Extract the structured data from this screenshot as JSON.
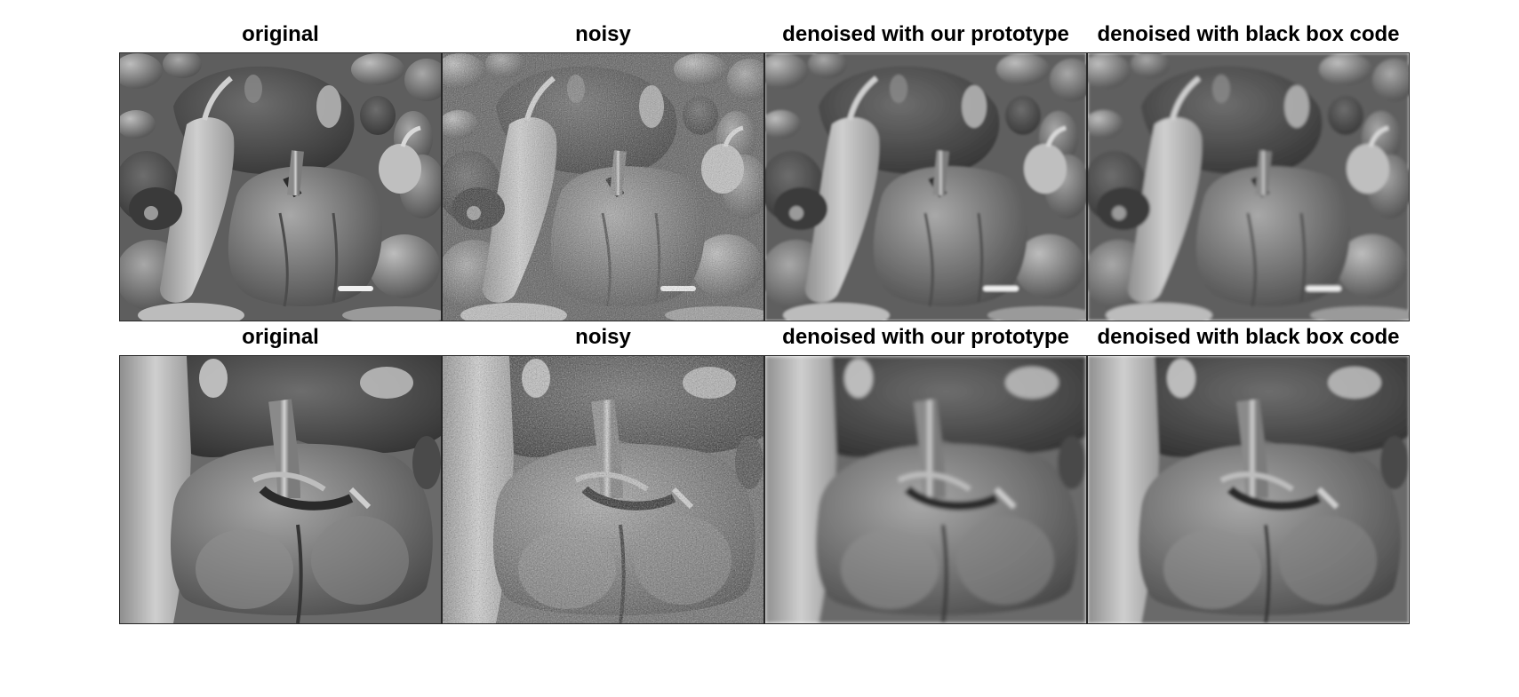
{
  "figure": {
    "rows": [
      {
        "panels": [
          {
            "title": "original",
            "variant": "original"
          },
          {
            "title": "noisy",
            "variant": "noisy"
          },
          {
            "title": "denoised with our prototype",
            "variant": "prototype"
          },
          {
            "title": "denoised with black box code",
            "variant": "blackbox"
          }
        ]
      },
      {
        "panels": [
          {
            "title": "original",
            "variant": "original"
          },
          {
            "title": "noisy",
            "variant": "noisy"
          },
          {
            "title": "denoised with our prototype",
            "variant": "prototype"
          },
          {
            "title": "denoised with black box code",
            "variant": "blackbox"
          }
        ]
      }
    ]
  },
  "colors": {
    "background": "#ffffff",
    "title_text": "#000000",
    "panel_border": "#262626"
  }
}
